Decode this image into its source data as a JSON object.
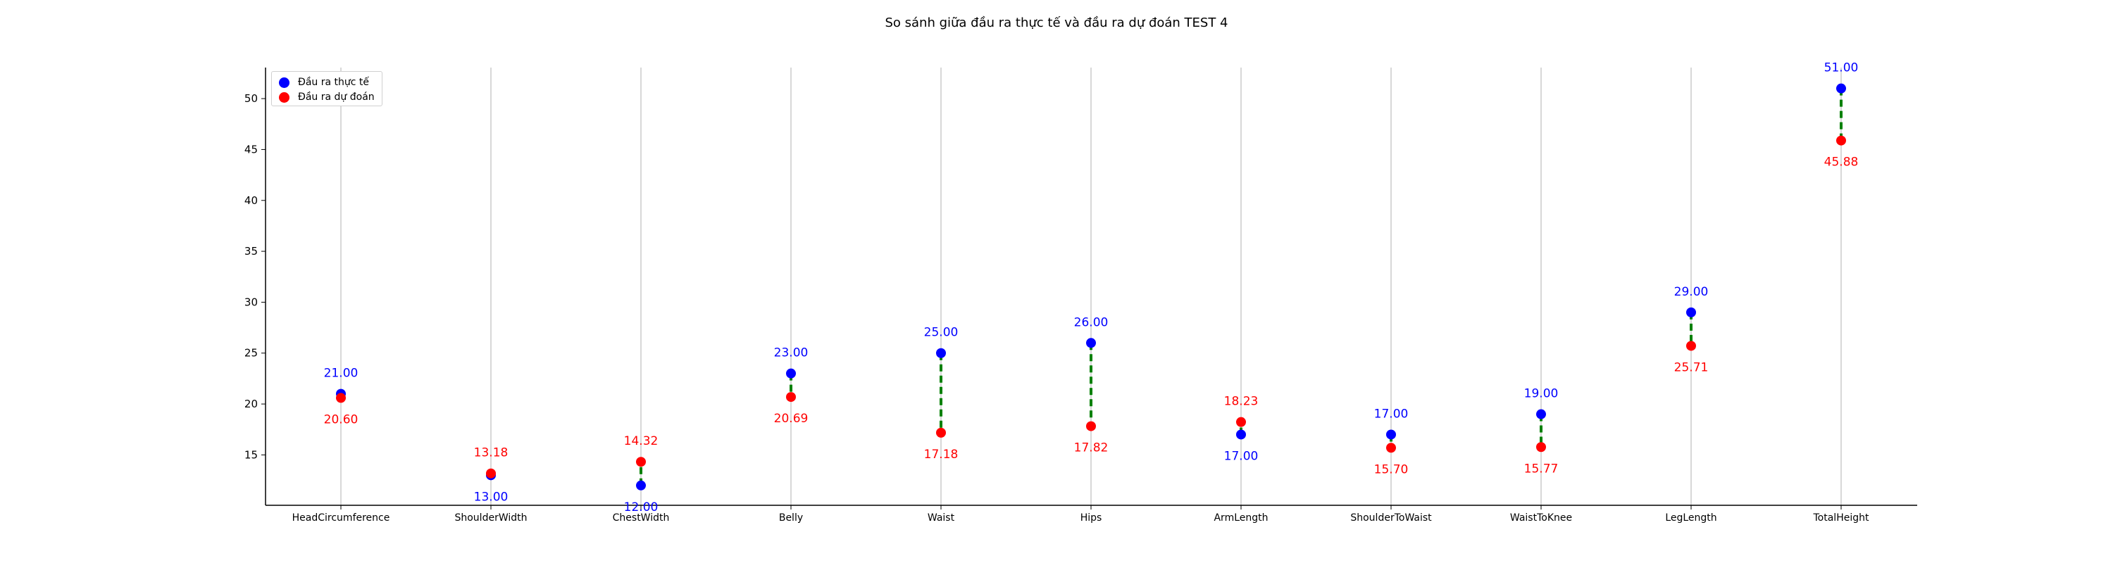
{
  "chart_data": {
    "type": "scatter",
    "title": "So sánh giữa đầu ra thực tế và đầu ra dự đoán TEST 4",
    "xlabel": "",
    "ylabel": "",
    "categories": [
      "HeadCircumference",
      "ShoulderWidth",
      "ChestWidth",
      "Belly",
      "Waist",
      "Hips",
      "ArmLength",
      "ShoulderToWaist",
      "WaistToKnee",
      "LegLength",
      "TotalHeight"
    ],
    "series": [
      {
        "name": "Đầu ra thực tế",
        "color": "#0000ff",
        "values": [
          21.0,
          13.0,
          12.0,
          23.0,
          25.0,
          26.0,
          17.0,
          17.0,
          19.0,
          29.0,
          51.0
        ],
        "labels": [
          "21.00",
          "13.00",
          "12.00",
          "23.00",
          "25.00",
          "26.00",
          "17.00",
          "17.00",
          "19.00",
          "29.00",
          "51.00"
        ]
      },
      {
        "name": "Đầu ra dự đoán",
        "color": "#ff0000",
        "values": [
          20.6,
          13.18,
          14.32,
          20.69,
          17.18,
          17.82,
          18.23,
          15.7,
          15.77,
          25.71,
          45.88
        ],
        "labels": [
          "20.60",
          "13.18",
          "14.32",
          "20.69",
          "17.18",
          "17.82",
          "18.23",
          "15.70",
          "15.77",
          "25.71",
          "45.88"
        ]
      }
    ],
    "ylim": [
      10.05,
      53.05
    ],
    "yticks": [
      15,
      20,
      25,
      30,
      35,
      40,
      45,
      50
    ],
    "grid": "vertical",
    "legend": "top-left",
    "connector_color": "#008000"
  }
}
